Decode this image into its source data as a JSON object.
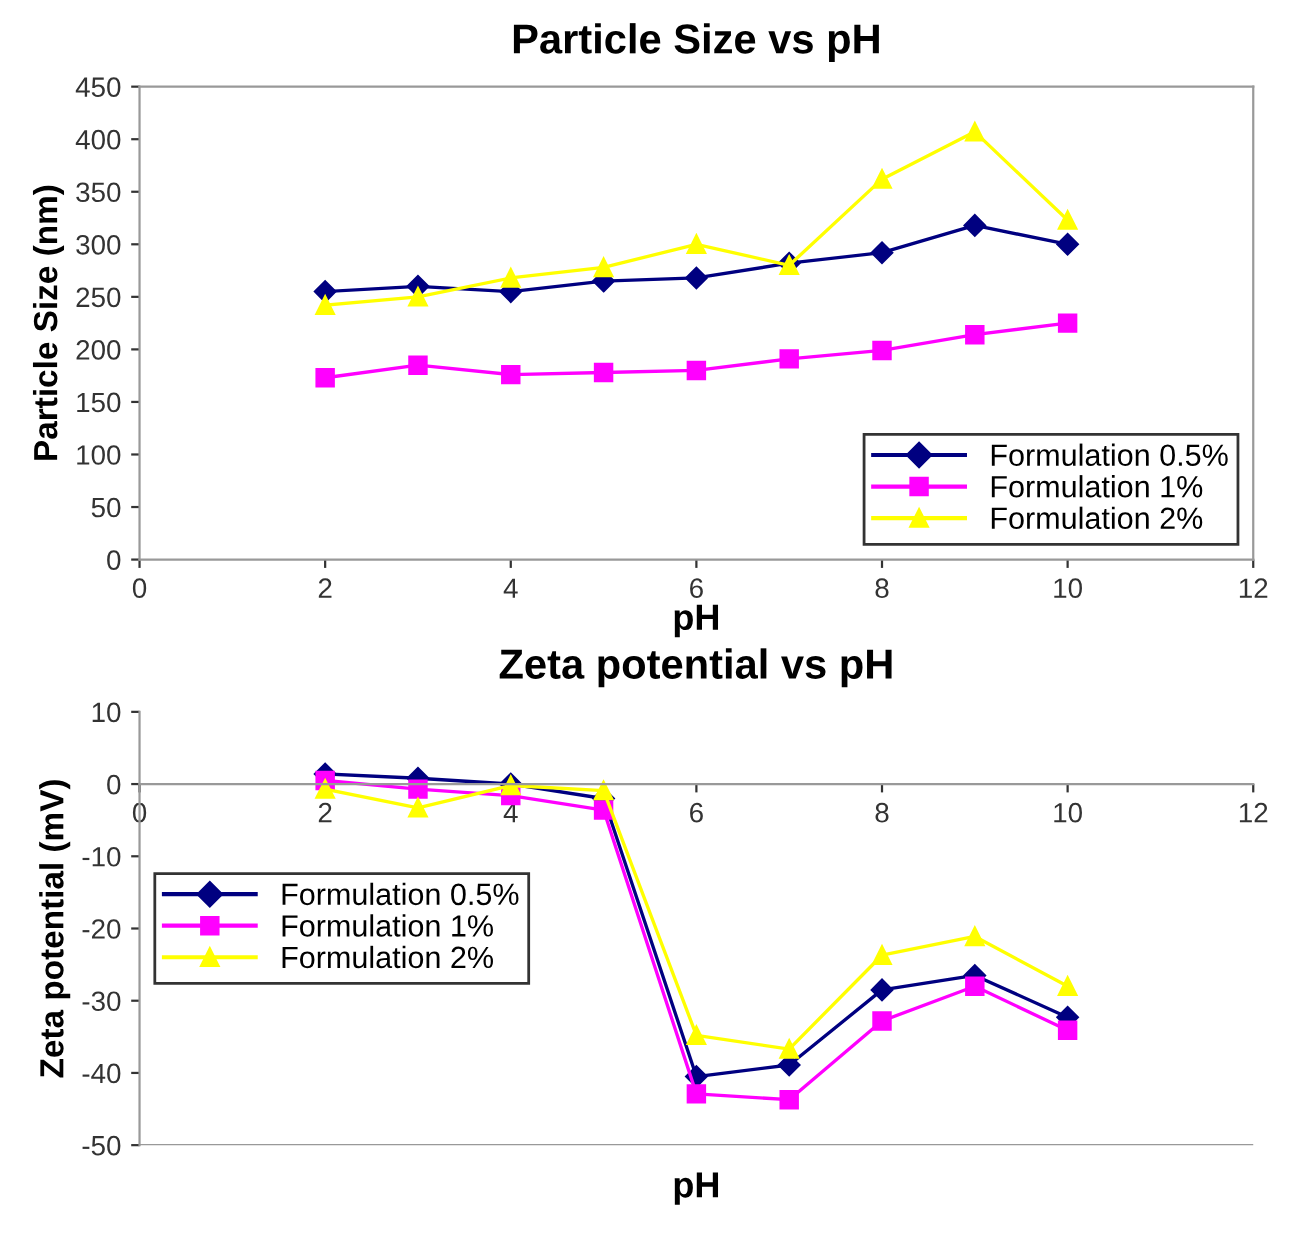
{
  "chart_data": [
    {
      "type": "line",
      "title": "Particle Size vs pH",
      "xlabel": "pH",
      "ylabel": "Particle Size (nm)",
      "xlim": [
        0,
        12
      ],
      "xticks": [
        0,
        2,
        4,
        6,
        8,
        10,
        12
      ],
      "ylim": [
        0,
        450
      ],
      "yticks": [
        0,
        50,
        100,
        150,
        200,
        250,
        300,
        350,
        400,
        450
      ],
      "x": [
        2,
        3,
        4,
        5,
        6,
        7,
        8,
        9,
        10
      ],
      "legend": "bottom right",
      "grid": false,
      "series": [
        {
          "name": "Formulation 0.5%",
          "color": "#000080",
          "marker": "diamond",
          "values": [
            255,
            260,
            255,
            265,
            268,
            282,
            292,
            318,
            300
          ]
        },
        {
          "name": "Formulation 1%",
          "color": "#ff00ff",
          "marker": "square",
          "values": [
            173,
            185,
            176,
            178,
            180,
            191,
            199,
            214,
            225
          ]
        },
        {
          "name": "Formulation 2%",
          "color": "#ffff00",
          "marker": "triangle",
          "values": [
            242,
            250,
            268,
            278,
            300,
            280,
            362,
            407,
            323
          ]
        }
      ]
    },
    {
      "type": "line",
      "title": "Zeta potential vs pH",
      "xlabel": "pH",
      "ylabel": "Zeta potential (mV)",
      "xlim": [
        0,
        12
      ],
      "xticks": [
        0,
        2,
        4,
        6,
        8,
        10,
        12
      ],
      "ylim": [
        -50,
        10
      ],
      "yticks": [
        -50,
        -40,
        -30,
        -20,
        -10,
        0,
        10
      ],
      "x": [
        2,
        3,
        4,
        5,
        6,
        7,
        8,
        9,
        10
      ],
      "legend": "left",
      "grid": false,
      "series": [
        {
          "name": "Formulation 0.5%",
          "color": "#000080",
          "marker": "diamond",
          "values": [
            1.4,
            0.8,
            0,
            -2,
            -40.5,
            -38.9,
            -28.5,
            -26.5,
            -32.3
          ]
        },
        {
          "name": "Formulation 1%",
          "color": "#ff00ff",
          "marker": "square",
          "values": [
            0.5,
            -0.7,
            -1.6,
            -3.6,
            -42.9,
            -43.7,
            -32.8,
            -28,
            -34.1
          ]
        },
        {
          "name": "Formulation 2%",
          "color": "#ffff00",
          "marker": "triangle",
          "values": [
            -0.7,
            -3.3,
            -0.2,
            -0.9,
            -34.8,
            -36.7,
            -23.7,
            -21.1,
            -28
          ]
        }
      ]
    }
  ]
}
